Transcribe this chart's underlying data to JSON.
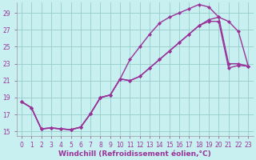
{
  "xlabel": "Windchill (Refroidissement éolien,°C)",
  "background_color": "#c8f0f0",
  "line_color": "#993399",
  "grid_color": "#99cccc",
  "xlim": [
    -0.5,
    23.5
  ],
  "ylim": [
    14.5,
    30.2
  ],
  "xticks": [
    0,
    1,
    2,
    3,
    4,
    5,
    6,
    7,
    8,
    9,
    10,
    11,
    12,
    13,
    14,
    15,
    16,
    17,
    18,
    19,
    20,
    21,
    22,
    23
  ],
  "yticks": [
    15,
    17,
    19,
    21,
    23,
    25,
    27,
    29
  ],
  "line1_x": [
    0,
    1,
    2,
    3,
    4,
    5,
    6,
    7,
    8,
    9,
    10,
    11,
    12,
    13,
    14,
    15,
    16,
    17,
    18,
    19,
    20,
    21,
    22,
    23
  ],
  "line1_y": [
    18.5,
    17.8,
    15.3,
    15.4,
    15.3,
    15.2,
    15.5,
    17.1,
    19.0,
    19.3,
    21.2,
    21.0,
    21.5,
    22.5,
    23.5,
    24.5,
    25.5,
    26.5,
    27.5,
    28.0,
    28.0,
    22.5,
    22.8,
    22.7
  ],
  "line2_x": [
    0,
    1,
    2,
    3,
    4,
    5,
    6,
    7,
    8,
    9,
    10,
    11,
    12,
    13,
    14,
    15,
    16,
    17,
    18,
    19,
    20,
    21,
    22,
    23
  ],
  "line2_y": [
    18.5,
    17.8,
    15.3,
    15.4,
    15.3,
    15.2,
    15.5,
    17.1,
    19.0,
    19.3,
    21.2,
    23.5,
    25.0,
    26.5,
    27.8,
    28.5,
    29.0,
    29.5,
    30.0,
    29.7,
    28.5,
    23.0,
    23.0,
    22.7
  ],
  "line3_x": [
    0,
    1,
    2,
    3,
    4,
    5,
    6,
    7,
    8,
    9,
    10,
    11,
    12,
    13,
    14,
    15,
    16,
    17,
    18,
    19,
    20,
    21,
    22,
    23
  ],
  "line3_y": [
    18.5,
    17.8,
    15.3,
    15.4,
    15.3,
    15.2,
    15.5,
    17.1,
    19.0,
    19.3,
    21.2,
    21.0,
    21.5,
    22.5,
    23.5,
    24.5,
    25.5,
    26.5,
    27.5,
    28.2,
    28.5,
    28.0,
    26.8,
    22.7
  ],
  "marker": "D",
  "markersize": 2.0,
  "linewidth": 1.0,
  "tick_fontsize": 5.5,
  "xlabel_fontsize": 6.5
}
